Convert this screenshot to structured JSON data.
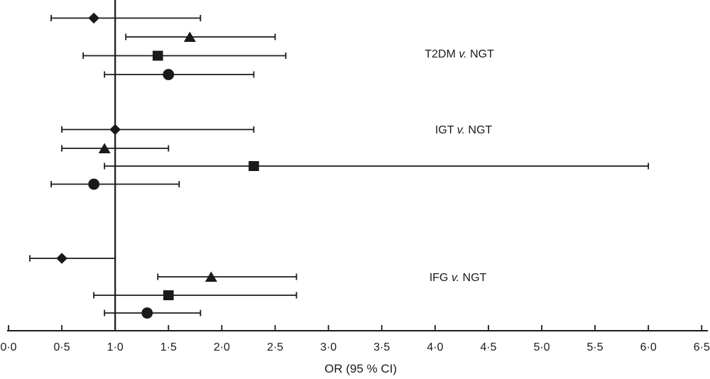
{
  "colors": {
    "foreground": "#1a1a1a",
    "background": "#ffffff"
  },
  "chart_data": {
    "type": "scatter",
    "subtype": "forest-plot",
    "title": "",
    "xlabel": "OR (95 % CI)",
    "ylabel": "",
    "xlim": [
      0,
      6.5
    ],
    "grid": false,
    "legend": false,
    "reference_line_x": 1.0,
    "x_ticks": [
      0.0,
      0.5,
      1.0,
      1.5,
      2.0,
      2.5,
      3.0,
      3.5,
      4.0,
      4.5,
      5.0,
      5.5,
      6.0,
      6.5
    ],
    "x_tick_labels": [
      "0·0",
      "0·5",
      "1·0",
      "1·5",
      "2·0",
      "2·5",
      "3·0",
      "3·5",
      "4·0",
      "4·5",
      "5·0",
      "5·5",
      "6·0",
      "6·5"
    ],
    "groups": [
      {
        "label": "T2DM v. NGT",
        "label_parts": {
          "pre": "T2DM ",
          "italic": "v.",
          "post": " NGT"
        },
        "rows": [
          {
            "marker": "diamond",
            "or": 0.8,
            "ci_low": 0.4,
            "ci_high": 1.8
          },
          {
            "marker": "triangle",
            "or": 1.7,
            "ci_low": 1.1,
            "ci_high": 2.5
          },
          {
            "marker": "square",
            "or": 1.4,
            "ci_low": 0.7,
            "ci_high": 2.6
          },
          {
            "marker": "circle",
            "or": 1.5,
            "ci_low": 0.9,
            "ci_high": 2.3
          }
        ]
      },
      {
        "label": "IGT v. NGT",
        "label_parts": {
          "pre": "IGT ",
          "italic": "v.",
          "post": " NGT"
        },
        "rows": [
          {
            "marker": "diamond",
            "or": 1.0,
            "ci_low": 0.5,
            "ci_high": 2.3
          },
          {
            "marker": "triangle",
            "or": 0.9,
            "ci_low": 0.5,
            "ci_high": 1.5
          },
          {
            "marker": "square",
            "or": 2.3,
            "ci_low": 0.9,
            "ci_high": 6.0
          },
          {
            "marker": "circle",
            "or": 0.8,
            "ci_low": 0.4,
            "ci_high": 1.6
          }
        ]
      },
      {
        "label": "IFG v. NGT",
        "label_parts": {
          "pre": "IFG ",
          "italic": "v.",
          "post": " NGT"
        },
        "rows": [
          {
            "marker": "diamond",
            "or": 0.5,
            "ci_low": 0.2,
            "ci_high": 1.0
          },
          {
            "marker": "triangle",
            "or": 1.9,
            "ci_low": 1.4,
            "ci_high": 2.7
          },
          {
            "marker": "square",
            "or": 1.5,
            "ci_low": 0.8,
            "ci_high": 2.7
          },
          {
            "marker": "circle",
            "or": 1.3,
            "ci_low": 0.9,
            "ci_high": 1.8
          }
        ]
      }
    ]
  }
}
